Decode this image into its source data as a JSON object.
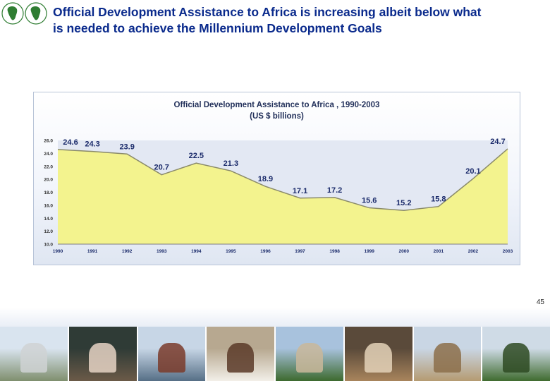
{
  "slide": {
    "title_line1": "Official Development Assistance to Africa is increasing albeit below what",
    "title_line2": "is needed to achieve the Millennium Development Goals",
    "page_number": "45"
  },
  "chart_data": {
    "type": "area",
    "title": "Official Development Assistance to Africa , 1990-2003",
    "subtitle": "(US $ billions)",
    "categories": [
      "1990",
      "1991",
      "1992",
      "1993",
      "1994",
      "1995",
      "1996",
      "1997",
      "1998",
      "1999",
      "2000",
      "2001",
      "2002",
      "2003"
    ],
    "values": [
      24.6,
      24.3,
      23.9,
      20.7,
      22.5,
      21.3,
      18.9,
      17.1,
      17.2,
      15.6,
      15.2,
      15.8,
      20.1,
      24.7
    ],
    "data_labels": [
      "24.6",
      "24.3",
      "23.9",
      "20.7",
      "22.5",
      "21.3",
      "18.9",
      "17.1",
      "17.2",
      "15.6",
      "15.2",
      "15.8",
      "20.1",
      "24.7"
    ],
    "ylim": [
      10,
      26
    ],
    "yticks": [
      "10.0",
      "12.0",
      "14.0",
      "16.0",
      "18.0",
      "20.0",
      "22.0",
      "24.0",
      "26.0"
    ],
    "xlabel": "",
    "ylabel": "",
    "grid": false,
    "fill_color": "#f3f38e",
    "line_color": "#8a8a6a"
  },
  "photos": [
    {
      "name": "photo-headquarters",
      "sky": "#d9e4ef",
      "ground": "#7f8f6e",
      "accent": "#cfd2d4"
    },
    {
      "name": "photo-classroom",
      "sky": "#2f3b36",
      "ground": "#6b5a48",
      "accent": "#e6d3c4"
    },
    {
      "name": "photo-ship",
      "sky": "#c7d6e6",
      "ground": "#566f86",
      "accent": "#7a3b2a"
    },
    {
      "name": "photo-schoolchildren",
      "sky": "#b7a890",
      "ground": "#f2efe8",
      "accent": "#5a3a28"
    },
    {
      "name": "photo-railway",
      "sky": "#a8c2dd",
      "ground": "#3d6a2e",
      "accent": "#c9b79a"
    },
    {
      "name": "photo-market-woman",
      "sky": "#5a4a3a",
      "ground": "#a8845c",
      "accent": "#e4d2b8"
    },
    {
      "name": "photo-salt-flats",
      "sky": "#c9d6e4",
      "ground": "#b59b72",
      "accent": "#8c6f4a"
    },
    {
      "name": "photo-field-workers",
      "sky": "#cfdbe6",
      "ground": "#3f6b2f",
      "accent": "#2e4a22"
    }
  ]
}
